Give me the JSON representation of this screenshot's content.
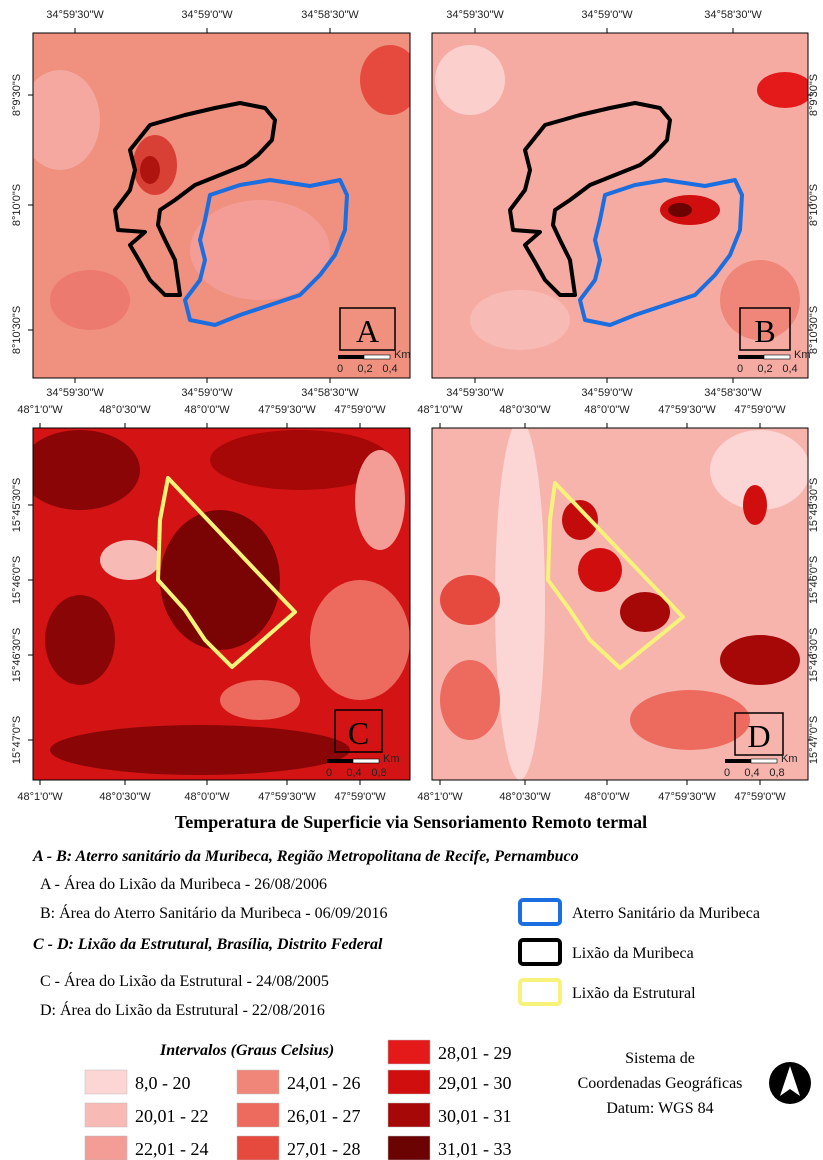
{
  "panels": [
    {
      "label": "A",
      "top_ticks": [
        "34°59'30\"W",
        "34°59'0\"W",
        "34°58'30\"W"
      ],
      "bottom_ticks": [
        "34°59'30\"W",
        "34°59'0\"W",
        "34°58'30\"W"
      ],
      "side_ticks": [
        "8°9'30\"S",
        "8°10'0\"S",
        "8°10'30\"S"
      ],
      "scale": [
        "0",
        "0,2",
        "0,4"
      ],
      "scale_unit": "Km"
    },
    {
      "label": "B",
      "top_ticks": [
        "34°59'30\"W",
        "34°59'0\"W",
        "34°58'30\"W"
      ],
      "bottom_ticks": [
        "34°59'30\"W",
        "34°59'0\"W",
        "34°58'30\"W"
      ],
      "side_ticks": [
        "8°9'30\"S",
        "8°10'0\"S",
        "8°10'30\"S"
      ],
      "scale": [
        "0",
        "0,2",
        "0,4"
      ],
      "scale_unit": "Km"
    },
    {
      "label": "C",
      "top_ticks": [
        "48°1'0\"W",
        "48°0'30\"W",
        "48°0'0\"W",
        "47°59'30\"W",
        "47°59'0\"W"
      ],
      "bottom_ticks": [
        "48°1'0\"W",
        "48°0'30\"W",
        "48°0'0\"W",
        "47°59'30\"W",
        "47°59'0\"W"
      ],
      "side_ticks": [
        "15°45'30\"S",
        "15°46'0\"S",
        "15°46'30\"S",
        "15°47'0\"S"
      ],
      "scale": [
        "0",
        "0,4",
        "0,8"
      ],
      "scale_unit": "Km"
    },
    {
      "label": "D",
      "top_ticks": [
        "48°1'0\"W",
        "48°0'30\"W",
        "48°0'0\"W",
        "47°59'30\"W",
        "47°59'0\"W"
      ],
      "bottom_ticks": [
        "48°1'0\"W",
        "48°0'30\"W",
        "48°0'0\"W",
        "47°59'30\"W",
        "47°59'0\"W"
      ],
      "side_ticks": [
        "15°45'30\"S",
        "15°46'0\"S",
        "15°46'30\"S",
        "15°47'0\"S"
      ],
      "scale": [
        "0",
        "0,4",
        "0,8"
      ],
      "scale_unit": "Km"
    }
  ],
  "caption": "Temperatura de Superficie via Sensoriamento Remoto termal",
  "groups": [
    {
      "heading": "A - B: Aterro sanitário da Muribeca, Região Metropolitana de Recife, Pernambuco",
      "items": [
        "A - Área do Lixão da Muribeca - 26/08/2006",
        "B:  Área do Aterro Sanitário da Muribeca - 06/09/2016"
      ]
    },
    {
      "heading": "C - D: Lixão da Estrutural, Brasília, Distrito Federal",
      "items": [
        "C - Área do Lixão da Estrutural - 24/08/2005",
        "D:  Área do Lixão da Estrutural - 22/08/2016"
      ]
    }
  ],
  "outlines": [
    {
      "label": "Aterro Sanitário da Muribeca",
      "color": "#1a6ee0"
    },
    {
      "label": "Lixão da Muribeca",
      "color": "#000000"
    },
    {
      "label": "Lixão da Estrutural",
      "color": "#f6f27a"
    }
  ],
  "legend": {
    "title": "Intervalos (Graus Celsius)",
    "classes": [
      {
        "label": "8,0 - 20",
        "color": "#fbd6d4"
      },
      {
        "label": "20,01 - 22",
        "color": "#f8bab5"
      },
      {
        "label": "22,01 - 24",
        "color": "#f49d96"
      },
      {
        "label": "24,01 - 26",
        "color": "#f0867a"
      },
      {
        "label": "26,01 - 27",
        "color": "#ec6b5e"
      },
      {
        "label": "27,01 - 28",
        "color": "#e64a3f"
      },
      {
        "label": "28,01 - 29",
        "color": "#e41a1a"
      },
      {
        "label": "29,01 - 30",
        "color": "#d00e0e"
      },
      {
        "label": "30,01 - 31",
        "color": "#a60707"
      },
      {
        "label": "31,01 - 33",
        "color": "#6b0303"
      }
    ]
  },
  "crs": [
    "Sistema de",
    "Coordenadas Geográficas",
    "Datum: WGS 84"
  ]
}
